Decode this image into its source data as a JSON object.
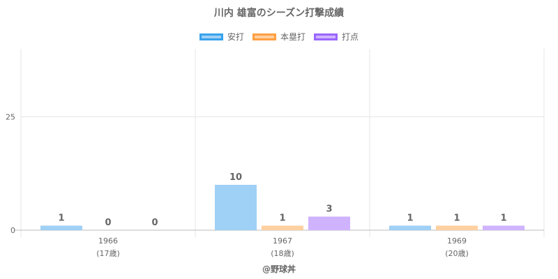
{
  "chart_data": {
    "type": "bar",
    "title": "川内 雄富のシーズン打撃成績",
    "categories": [
      "1966",
      "1967",
      "1969"
    ],
    "sub_labels": [
      "(17歳)",
      "(18歳)",
      "(20歳)"
    ],
    "series": [
      {
        "name": "安打",
        "values": [
          1,
          10,
          1
        ],
        "fill": "#9fd0f5",
        "border": "#36a2eb"
      },
      {
        "name": "本塁打",
        "values": [
          0,
          1,
          1
        ],
        "fill": "#ffd0a0",
        "border": "#ff9f40"
      },
      {
        "name": "打点",
        "values": [
          0,
          3,
          1
        ],
        "fill": "#cfb3ff",
        "border": "#9966ff"
      }
    ],
    "y_ticks": [
      "0",
      "25"
    ],
    "ylim": [
      0,
      40
    ],
    "grid": true,
    "legend": "top"
  },
  "credit": "@野球丼"
}
